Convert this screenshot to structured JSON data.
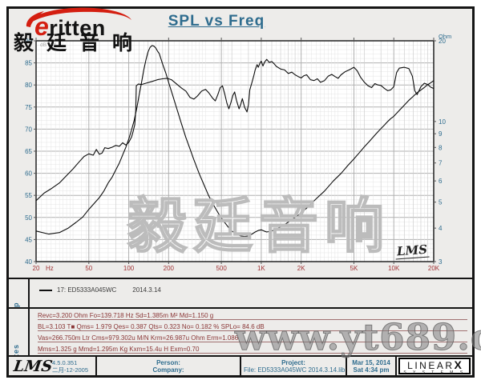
{
  "header": {
    "title": "SPL vs Freq"
  },
  "logo": {
    "initial": "e",
    "brand": "ritten",
    "company": "毅廷音响"
  },
  "chart": {
    "left_axis_unit": "dB SPL",
    "right_axis_unit": "Ohm",
    "x_axis_unit": "Hz",
    "corner_sign": "LMS",
    "watermark": "毅廷音响"
  },
  "chart_data": {
    "type": "line",
    "title": "SPL vs Freq",
    "x_axis": {
      "label": "Hz",
      "scale": "log",
      "min": 20,
      "max": 20000,
      "ticks": [
        [
          20,
          "20"
        ],
        [
          50,
          "50"
        ],
        [
          100,
          "100"
        ],
        [
          200,
          "200"
        ],
        [
          500,
          "500"
        ],
        [
          1000,
          "1K"
        ],
        [
          2000,
          "2K"
        ],
        [
          5000,
          "5K"
        ],
        [
          10000,
          "10K"
        ],
        [
          20000,
          "20K"
        ]
      ]
    },
    "y_left": {
      "label": "dB SPL",
      "min": 40,
      "max": 90,
      "major_step": 5,
      "minor_step": 1,
      "ticks": [
        90,
        85,
        80,
        75,
        70,
        65,
        60,
        55,
        50,
        45,
        40
      ]
    },
    "y_right": {
      "label": "Ohm",
      "scale": "log",
      "min": 3,
      "max": 20,
      "ticks": [
        20,
        10,
        9,
        8,
        7,
        6,
        5,
        4,
        3
      ]
    },
    "grid": true,
    "legend_position": "map-panel",
    "series": [
      {
        "name": "17: ED5333A045WC",
        "quantity": "SPL",
        "axis": "left",
        "color": "#0c0c0c",
        "points": [
          [
            20,
            53.8
          ],
          [
            23,
            55.5
          ],
          [
            26,
            56.5
          ],
          [
            30,
            57.8
          ],
          [
            34,
            59.5
          ],
          [
            38,
            61
          ],
          [
            42,
            62.5
          ],
          [
            46,
            63.8
          ],
          [
            50,
            64.4
          ],
          [
            54,
            64.1
          ],
          [
            57,
            65.4
          ],
          [
            60,
            64.3
          ],
          [
            63,
            64.6
          ],
          [
            66,
            65.8
          ],
          [
            70,
            65.6
          ],
          [
            75,
            65.9
          ],
          [
            80,
            66.3
          ],
          [
            85,
            66.1
          ],
          [
            90,
            66.9
          ],
          [
            95,
            66.4
          ],
          [
            100,
            67
          ],
          [
            105,
            68.2
          ],
          [
            108,
            69.5
          ],
          [
            111,
            71
          ],
          [
            113,
            74
          ],
          [
            114,
            79.8
          ],
          [
            118,
            80.2
          ],
          [
            125,
            80.1
          ],
          [
            135,
            80.4
          ],
          [
            150,
            80.8
          ],
          [
            165,
            81.2
          ],
          [
            180,
            81.4
          ],
          [
            195,
            81.5
          ],
          [
            210,
            81.2
          ],
          [
            230,
            80.2
          ],
          [
            250,
            79.3
          ],
          [
            270,
            78.6
          ],
          [
            290,
            77.2
          ],
          [
            310,
            76.8
          ],
          [
            330,
            77.5
          ],
          [
            355,
            78.6
          ],
          [
            380,
            79
          ],
          [
            400,
            78.3
          ],
          [
            430,
            77
          ],
          [
            450,
            76.4
          ],
          [
            470,
            77.8
          ],
          [
            490,
            79.4
          ],
          [
            510,
            79.8
          ],
          [
            530,
            78
          ],
          [
            550,
            75.9
          ],
          [
            570,
            74.6
          ],
          [
            590,
            76
          ],
          [
            610,
            77.6
          ],
          [
            630,
            78.4
          ],
          [
            650,
            76.5
          ],
          [
            680,
            74.6
          ],
          [
            700,
            75.6
          ],
          [
            720,
            76.9
          ],
          [
            750,
            74.9
          ],
          [
            780,
            73.9
          ],
          [
            800,
            75.5
          ],
          [
            820,
            78.9
          ],
          [
            850,
            80.5
          ],
          [
            880,
            82.2
          ],
          [
            900,
            83.4
          ],
          [
            930,
            84.6
          ],
          [
            950,
            84
          ],
          [
            980,
            85
          ],
          [
            1000,
            85.4
          ],
          [
            1030,
            84.3
          ],
          [
            1060,
            85.2
          ],
          [
            1100,
            85.8
          ],
          [
            1150,
            85.1
          ],
          [
            1200,
            85.3
          ],
          [
            1250,
            84.8
          ],
          [
            1300,
            84.2
          ],
          [
            1400,
            83.6
          ],
          [
            1500,
            83.4
          ],
          [
            1600,
            82.6
          ],
          [
            1700,
            82.9
          ],
          [
            1800,
            82.3
          ],
          [
            1900,
            81.9
          ],
          [
            2000,
            81.6
          ],
          [
            2100,
            82.1
          ],
          [
            2200,
            82.3
          ],
          [
            2350,
            81.2
          ],
          [
            2500,
            81
          ],
          [
            2650,
            81.4
          ],
          [
            2800,
            80.6
          ],
          [
            3000,
            81
          ],
          [
            3200,
            82
          ],
          [
            3400,
            82.4
          ],
          [
            3600,
            81.9
          ],
          [
            3800,
            81.5
          ],
          [
            4000,
            82.3
          ],
          [
            4300,
            83
          ],
          [
            4600,
            83.4
          ],
          [
            5000,
            84
          ],
          [
            5300,
            83.2
          ],
          [
            5600,
            81.8
          ],
          [
            6000,
            80.6
          ],
          [
            6400,
            79.8
          ],
          [
            6800,
            79.4
          ],
          [
            7200,
            80.3
          ],
          [
            7600,
            80
          ],
          [
            8000,
            79.9
          ],
          [
            8500,
            79.2
          ],
          [
            9000,
            78.7
          ],
          [
            9500,
            78.9
          ],
          [
            10000,
            79.6
          ],
          [
            10500,
            82.8
          ],
          [
            11000,
            83.8
          ],
          [
            12000,
            84
          ],
          [
            13000,
            83.7
          ],
          [
            13800,
            82
          ],
          [
            14400,
            78.7
          ],
          [
            15000,
            77.8
          ],
          [
            16000,
            79.6
          ],
          [
            17000,
            80.4
          ],
          [
            18000,
            80.1
          ],
          [
            19000,
            79.5
          ],
          [
            20000,
            79.2
          ]
        ]
      },
      {
        "name": "Impedance",
        "quantity": "Impedance",
        "axis": "right",
        "color": "#0c0c0c",
        "points": [
          [
            20,
            3.9
          ],
          [
            25,
            3.8
          ],
          [
            30,
            3.85
          ],
          [
            35,
            4.0
          ],
          [
            40,
            4.2
          ],
          [
            45,
            4.4
          ],
          [
            50,
            4.7
          ],
          [
            55,
            4.95
          ],
          [
            60,
            5.2
          ],
          [
            65,
            5.5
          ],
          [
            70,
            5.9
          ],
          [
            75,
            6.2
          ],
          [
            80,
            6.6
          ],
          [
            85,
            7.0
          ],
          [
            90,
            7.5
          ],
          [
            95,
            8.0
          ],
          [
            100,
            8.6
          ],
          [
            105,
            9.3
          ],
          [
            110,
            10.1
          ],
          [
            115,
            11.2
          ],
          [
            120,
            12.6
          ],
          [
            125,
            14.0
          ],
          [
            130,
            15.6
          ],
          [
            135,
            17.0
          ],
          [
            140,
            18.2
          ],
          [
            145,
            18.9
          ],
          [
            150,
            19.2
          ],
          [
            155,
            19.1
          ],
          [
            160,
            18.8
          ],
          [
            165,
            18.3
          ],
          [
            170,
            17.9
          ],
          [
            180,
            16.4
          ],
          [
            190,
            15.2
          ],
          [
            200,
            14.0
          ],
          [
            215,
            12.5
          ],
          [
            230,
            11.2
          ],
          [
            250,
            9.8
          ],
          [
            270,
            8.7
          ],
          [
            290,
            7.9
          ],
          [
            310,
            7.2
          ],
          [
            340,
            6.4
          ],
          [
            370,
            5.8
          ],
          [
            400,
            5.3
          ],
          [
            440,
            4.85
          ],
          [
            480,
            4.5
          ],
          [
            520,
            4.25
          ],
          [
            560,
            4.05
          ],
          [
            600,
            3.9
          ],
          [
            650,
            3.8
          ],
          [
            700,
            3.74
          ],
          [
            750,
            3.72
          ],
          [
            800,
            3.74
          ],
          [
            850,
            3.8
          ],
          [
            900,
            3.87
          ],
          [
            950,
            3.92
          ],
          [
            1000,
            3.94
          ],
          [
            1050,
            3.9
          ],
          [
            1100,
            3.87
          ],
          [
            1200,
            3.9
          ],
          [
            1300,
            3.97
          ],
          [
            1400,
            4.05
          ],
          [
            1500,
            4.12
          ],
          [
            1700,
            4.3
          ],
          [
            2000,
            4.55
          ],
          [
            2300,
            4.85
          ],
          [
            2600,
            5.15
          ],
          [
            3000,
            5.5
          ],
          [
            3500,
            6.0
          ],
          [
            4000,
            6.4
          ],
          [
            4500,
            6.85
          ],
          [
            5000,
            7.25
          ],
          [
            5500,
            7.65
          ],
          [
            6000,
            8.05
          ],
          [
            6500,
            8.4
          ],
          [
            7000,
            8.75
          ],
          [
            7500,
            9.1
          ],
          [
            8000,
            9.4
          ],
          [
            8500,
            9.7
          ],
          [
            9000,
            10.0
          ],
          [
            9500,
            10.25
          ],
          [
            10000,
            10.45
          ],
          [
            11000,
            11.0
          ],
          [
            12000,
            11.5
          ],
          [
            13000,
            12.0
          ],
          [
            14000,
            12.4
          ],
          [
            15000,
            12.8
          ],
          [
            16000,
            13.1
          ],
          [
            17000,
            13.4
          ],
          [
            18000,
            13.7
          ],
          [
            19000,
            13.95
          ],
          [
            20000,
            14.2
          ]
        ]
      }
    ]
  },
  "map": {
    "label": "Map",
    "legend_text": "17: ED5333A045WC",
    "legend_date": "2014.3.14"
  },
  "notes": {
    "label": "Notes",
    "lines": [
      "Revc=3.200 Ohm  Fo=139.718 Hz  Sd=1.385m M²  Md=1.150 g",
      "BL=3.103 T■  Qms= 1.979  Qes= 0.387  Qts= 0.323  No= 0.182 %  SPLo= 84.6 dB",
      "Vas=266.750m Ltr  Cms=979.302u M/N  Krm=26.987u Ohm  Erm=1.086",
      "Mms=1.325 g  Mmd=1.295m Kg  Kxm=15.4u H  Exm=0.70"
    ]
  },
  "footer": {
    "lms_logo": "LMS",
    "version": "4.5.0.351",
    "version_date": "二月-12-2005",
    "person_label": "Person:",
    "company_label": "Company:",
    "project_label": "Project:",
    "file": "File: ED5333A045WC   2014.3.14.lib",
    "date": "Mar 15, 2014",
    "time": "Sat  4:34 pm",
    "brand_main": "LINEAR",
    "brand_x": "X",
    "brand_sub": "S Y S T E M S"
  },
  "watermark_site": "www.yt689.com",
  "colors": {
    "accent_blue": "#2e6c8e",
    "axis_red": "#a03335",
    "notes_red": "#8a3535",
    "curve": "#0c0c0c",
    "logo_red": "#d41e10",
    "grid_minor": "#e4e4e4",
    "grid_medium": "#cfcfcf",
    "grid_major": "#b0b0b0",
    "plot_border": "#222222",
    "panel_bg": "#edecea"
  }
}
